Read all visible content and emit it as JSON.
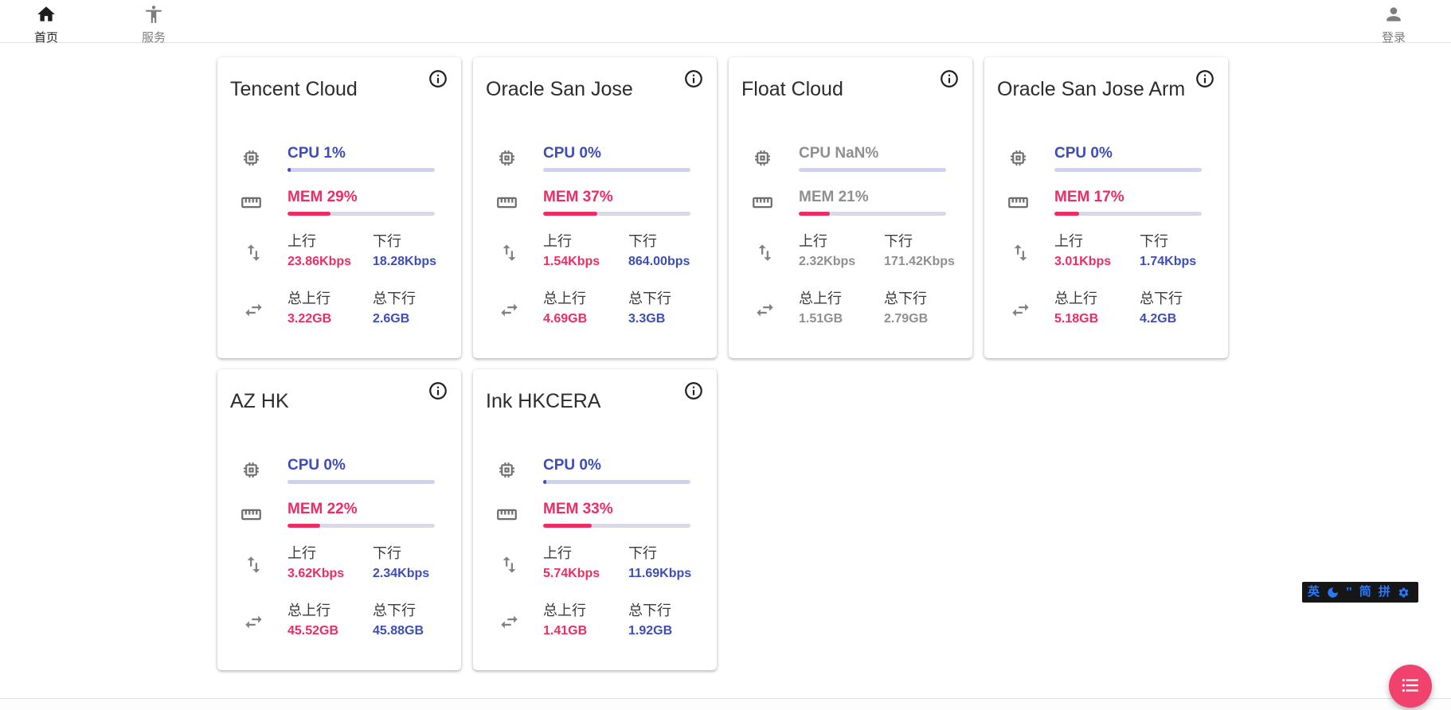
{
  "navbar": {
    "home": "首页",
    "services": "服务",
    "login": "登录"
  },
  "labels": {
    "up": "上行",
    "down": "下行",
    "total_up": "总上行",
    "total_down": "总下行"
  },
  "servers": [
    {
      "name": "Tencent Cloud",
      "cpu_label": "CPU 1%",
      "cpu_pct": 1,
      "mem_label": "MEM 29%",
      "mem_pct": 29,
      "up": "23.86Kbps",
      "down": "18.28Kbps",
      "total_up": "3.22GB",
      "total_down": "2.6GB",
      "muted": false
    },
    {
      "name": "Oracle San Jose",
      "cpu_label": "CPU 0%",
      "cpu_pct": 0,
      "mem_label": "MEM 37%",
      "mem_pct": 37,
      "up": "1.54Kbps",
      "down": "864.00bps",
      "total_up": "4.69GB",
      "total_down": "3.3GB",
      "muted": false
    },
    {
      "name": "Float Cloud",
      "cpu_label": "CPU NaN%",
      "cpu_pct": 0,
      "mem_label": "MEM 21%",
      "mem_pct": 21,
      "up": "2.32Kbps",
      "down": "171.42Kbps",
      "total_up": "1.51GB",
      "total_down": "2.79GB",
      "muted": true
    },
    {
      "name": "Oracle San Jose Arm",
      "cpu_label": "CPU 0%",
      "cpu_pct": 0,
      "mem_label": "MEM 17%",
      "mem_pct": 17,
      "up": "3.01Kbps",
      "down": "1.74Kbps",
      "total_up": "5.18GB",
      "total_down": "4.2GB",
      "muted": false
    },
    {
      "name": "AZ HK",
      "cpu_label": "CPU 0%",
      "cpu_pct": 0,
      "mem_label": "MEM 22%",
      "mem_pct": 22,
      "up": "3.62Kbps",
      "down": "2.34Kbps",
      "total_up": "45.52GB",
      "total_down": "45.88GB",
      "muted": false
    },
    {
      "name": "Ink HKCERA",
      "cpu_label": "CPU 0%",
      "cpu_pct": 0.5,
      "mem_label": "MEM 33%",
      "mem_pct": 33,
      "up": "5.74Kbps",
      "down": "11.69Kbps",
      "total_up": "1.41GB",
      "total_down": "1.92GB",
      "muted": false
    }
  ],
  "ime": {
    "english": "英",
    "punct": "’’",
    "simplified": "简",
    "pinyin": "拼"
  },
  "colors": {
    "accent_blue": "#3d4db8",
    "accent_pink": "#ec2d64",
    "cpu_track": "#ccd2f0",
    "mem_track": "#d9dae6",
    "muted_gray": "#8f8f8f",
    "fab_pink": "#f1416d",
    "ime_blue": "#2979ff"
  }
}
